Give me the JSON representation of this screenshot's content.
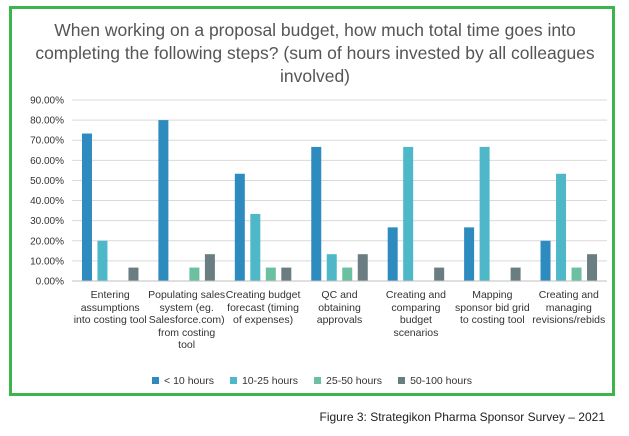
{
  "caption": "Figure 3: Strategikon Pharma Sponsor Survey – 2021",
  "chart_data": {
    "type": "bar",
    "title": "When working on a proposal budget, how much total time goes into completing the following steps? (sum of hours invested by all colleagues involved)",
    "categories": [
      [
        "Entering",
        "assumptions",
        "into costing tool"
      ],
      [
        "Populating sales",
        "system (eg.",
        "Salesforce.com)",
        "from costing",
        "tool"
      ],
      [
        "Creating budget",
        "forecast (timing",
        "of expenses)"
      ],
      [
        "QC and",
        "obtaining",
        "approvals"
      ],
      [
        "Creating and",
        "comparing",
        "budget",
        "scenarios"
      ],
      [
        "Mapping",
        "sponsor bid grid",
        "to costing tool"
      ],
      [
        "Creating and",
        "managing",
        "revisions/rebids"
      ]
    ],
    "series": [
      {
        "name": "< 10 hours",
        "color": "#2e8bbf",
        "values": [
          73.33,
          80.0,
          53.33,
          66.67,
          26.67,
          26.67,
          20.0
        ]
      },
      {
        "name": "10-25 hours",
        "color": "#4fb8c8",
        "values": [
          20.0,
          0,
          33.33,
          13.33,
          66.67,
          66.67,
          53.33
        ]
      },
      {
        "name": "25-50 hours",
        "color": "#6cc0a2",
        "values": [
          0,
          6.67,
          6.67,
          6.67,
          0,
          0,
          6.67
        ]
      },
      {
        "name": "50-100 hours",
        "color": "#6a7d80",
        "values": [
          6.67,
          13.33,
          6.67,
          13.33,
          6.67,
          6.67,
          13.33
        ]
      }
    ],
    "ylim": [
      0,
      90
    ],
    "yticks": [
      "0.00%",
      "10.00%",
      "20.00%",
      "30.00%",
      "40.00%",
      "50.00%",
      "60.00%",
      "70.00%",
      "80.00%",
      "90.00%"
    ],
    "grid": true,
    "legend": "bottom"
  }
}
